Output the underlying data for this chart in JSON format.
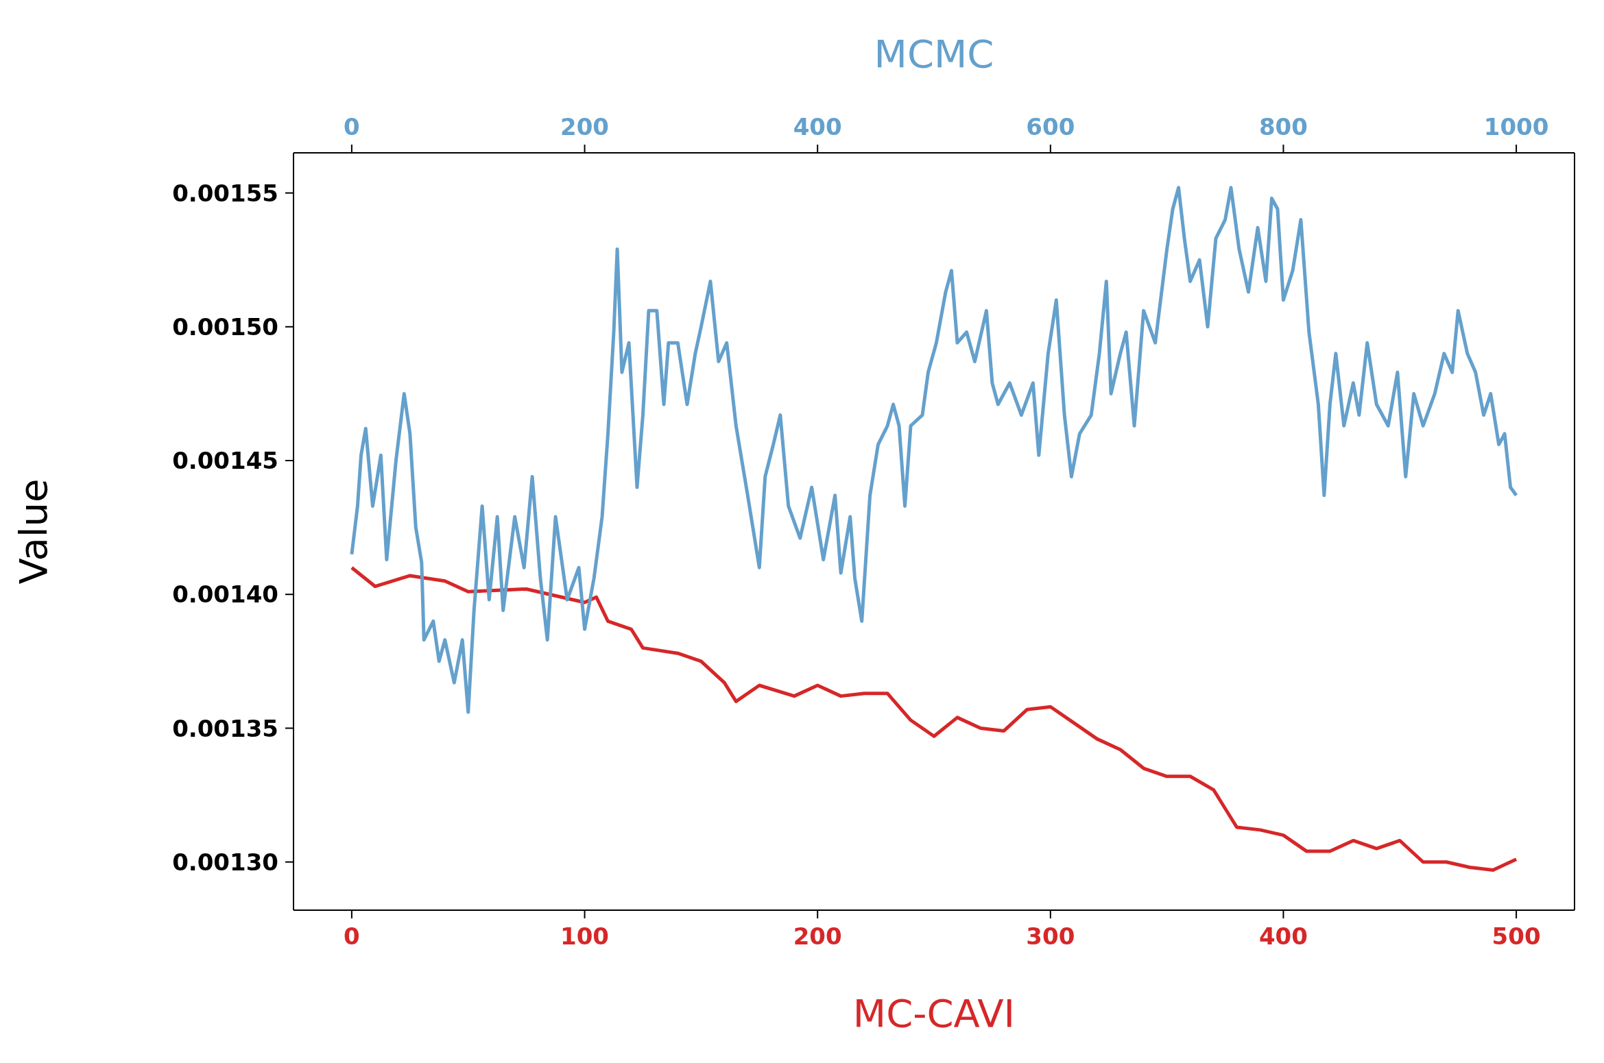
{
  "chart_data": {
    "type": "line",
    "xlabel": "MC-CAVI",
    "x2label": "MCMC",
    "ylabel": "Value",
    "xlim": [
      -25,
      525
    ],
    "xticks": [
      0,
      100,
      200,
      300,
      400,
      500
    ],
    "x2lim": [
      -50,
      1050
    ],
    "x2ticks": [
      0,
      200,
      400,
      600,
      800,
      1000
    ],
    "ylim": [
      0.001282,
      0.001565
    ],
    "yticks": [
      {
        "value": 0.0013,
        "label": "0.00130"
      },
      {
        "value": 0.00135,
        "label": "0.00135"
      },
      {
        "value": 0.0014,
        "label": "0.00140"
      },
      {
        "value": 0.00145,
        "label": "0.00145"
      },
      {
        "value": 0.0015,
        "label": "0.00150"
      },
      {
        "value": 0.00155,
        "label": "0.00155"
      }
    ],
    "marker": "none",
    "line_style": "solid",
    "series": [
      {
        "color": "#d62728",
        "x": [
          0,
          10,
          25,
          40,
          50,
          75,
          100,
          105,
          110,
          120,
          125,
          140,
          150,
          160,
          165,
          175,
          190,
          200,
          210,
          220,
          230,
          240,
          250,
          260,
          270,
          280,
          290,
          300,
          310,
          320,
          330,
          340,
          350,
          360,
          370,
          380,
          390,
          400,
          410,
          420,
          430,
          440,
          450,
          460,
          470,
          480,
          490,
          500
        ],
        "values": [
          0.00141,
          0.001403,
          0.001407,
          0.001405,
          0.001401,
          0.001402,
          0.001397,
          0.001399,
          0.00139,
          0.001387,
          0.00138,
          0.001378,
          0.001375,
          0.001367,
          0.00136,
          0.001366,
          0.001362,
          0.001366,
          0.001362,
          0.001363,
          0.001363,
          0.001353,
          0.001347,
          0.001354,
          0.00135,
          0.001349,
          0.001357,
          0.001358,
          0.001352,
          0.001346,
          0.001342,
          0.001335,
          0.001332,
          0.001332,
          0.001327,
          0.001313,
          0.001312,
          0.00131,
          0.001304,
          0.001304,
          0.001308,
          0.001305,
          0.001308,
          0.0013,
          0.0013,
          0.001298,
          0.001297,
          0.001301
        ]
      },
      {
        "color": "#64a0cc",
        "axis": "x2",
        "x": [
          0,
          5,
          8,
          12,
          18,
          25,
          30,
          38,
          45,
          50,
          55,
          60,
          62,
          70,
          75,
          80,
          88,
          95,
          100,
          105,
          112,
          118,
          125,
          130,
          140,
          148,
          155,
          162,
          168,
          175,
          185,
          195,
          200,
          208,
          215,
          220,
          225,
          228,
          232,
          238,
          245,
          250,
          255,
          262,
          268,
          272,
          280,
          288,
          295,
          300,
          308,
          315,
          322,
          330,
          340,
          350,
          355,
          362,
          368,
          375,
          385,
          395,
          405,
          415,
          420,
          428,
          432,
          438,
          445,
          452,
          460,
          465,
          470,
          475,
          480,
          490,
          495,
          502,
          510,
          515,
          520,
          528,
          535,
          545,
          550,
          555,
          565,
          575,
          585,
          590,
          598,
          605,
          612,
          618,
          625,
          635,
          642,
          648,
          652,
          660,
          665,
          672,
          680,
          690,
          700,
          705,
          710,
          715,
          720,
          728,
          735,
          742,
          750,
          755,
          762,
          770,
          778,
          785,
          790,
          795,
          800,
          808,
          815,
          822,
          830,
          835,
          840,
          845,
          852,
          860,
          865,
          872,
          880,
          890,
          898,
          905,
          912,
          920,
          930,
          938,
          945,
          950,
          958,
          965,
          972,
          978,
          985,
          990,
          995,
          1000
        ],
        "values": [
          0.001415,
          0.001433,
          0.001452,
          0.001462,
          0.001433,
          0.001452,
          0.001413,
          0.00145,
          0.001475,
          0.00146,
          0.001425,
          0.001412,
          0.001383,
          0.00139,
          0.001375,
          0.001383,
          0.001367,
          0.001383,
          0.001356,
          0.001394,
          0.001433,
          0.001398,
          0.001429,
          0.001394,
          0.001429,
          0.00141,
          0.001444,
          0.001406,
          0.001383,
          0.001429,
          0.001398,
          0.00141,
          0.001387,
          0.001406,
          0.001429,
          0.00146,
          0.001498,
          0.001529,
          0.001483,
          0.001494,
          0.00144,
          0.001467,
          0.001506,
          0.001506,
          0.001471,
          0.001494,
          0.001494,
          0.001471,
          0.00149,
          0.0015,
          0.001517,
          0.001487,
          0.001494,
          0.001463,
          0.001437,
          0.00141,
          0.001444,
          0.001456,
          0.001467,
          0.001433,
          0.001421,
          0.00144,
          0.001413,
          0.001437,
          0.001408,
          0.001429,
          0.001406,
          0.00139,
          0.001437,
          0.001456,
          0.001463,
          0.001471,
          0.001463,
          0.001433,
          0.001463,
          0.001467,
          0.001483,
          0.001494,
          0.001513,
          0.001521,
          0.001494,
          0.001498,
          0.001487,
          0.001506,
          0.001479,
          0.001471,
          0.001479,
          0.001467,
          0.001479,
          0.001452,
          0.00149,
          0.00151,
          0.001467,
          0.001444,
          0.00146,
          0.001467,
          0.00149,
          0.001517,
          0.001475,
          0.00149,
          0.001498,
          0.001463,
          0.001506,
          0.001494,
          0.001529,
          0.001544,
          0.001552,
          0.001533,
          0.001517,
          0.001525,
          0.0015,
          0.001533,
          0.00154,
          0.001552,
          0.001529,
          0.001513,
          0.001537,
          0.001517,
          0.001548,
          0.001544,
          0.00151,
          0.001521,
          0.00154,
          0.001498,
          0.001471,
          0.001437,
          0.001471,
          0.00149,
          0.001463,
          0.001479,
          0.001467,
          0.001494,
          0.001471,
          0.001463,
          0.001483,
          0.001444,
          0.001475,
          0.001463,
          0.001475,
          0.00149,
          0.001483,
          0.001506,
          0.00149,
          0.001483,
          0.001467,
          0.001475,
          0.001456,
          0.00146,
          0.00144,
          0.001437
        ]
      }
    ]
  }
}
